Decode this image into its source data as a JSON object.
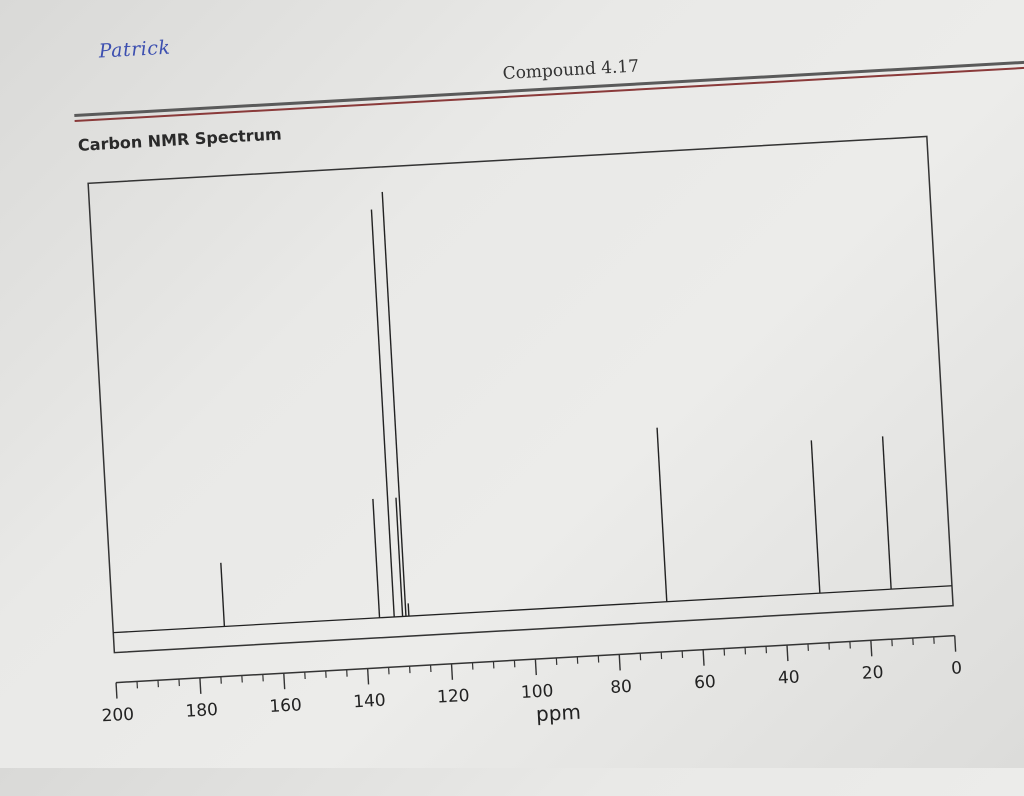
{
  "handwritten_note": "Patrick",
  "compound_title": "Compound 4.17",
  "chart_heading": "Carbon NMR Spectrum",
  "chart_data": {
    "type": "line",
    "title": "Carbon NMR Spectrum",
    "xlabel": "ppm",
    "ylabel": "",
    "xlim": [
      200,
      0
    ],
    "x_reversed": true,
    "xticks": [
      200,
      180,
      160,
      140,
      120,
      100,
      80,
      60,
      40,
      20,
      0
    ],
    "minor_tick_step": 5,
    "grid": false,
    "peaks": [
      {
        "x": 173.5,
        "y": 0.15
      },
      {
        "x": 136.5,
        "y": 0.28
      },
      {
        "x": 133.0,
        "y": 0.96
      },
      {
        "x": 131.0,
        "y": 0.28
      },
      {
        "x": 130.2,
        "y": 1.0
      },
      {
        "x": 129.5,
        "y": 0.03
      },
      {
        "x": 68.0,
        "y": 0.41
      },
      {
        "x": 31.5,
        "y": 0.36
      },
      {
        "x": 14.5,
        "y": 0.36
      }
    ],
    "colors": {
      "line": "#222222",
      "frame": "#333333"
    }
  }
}
